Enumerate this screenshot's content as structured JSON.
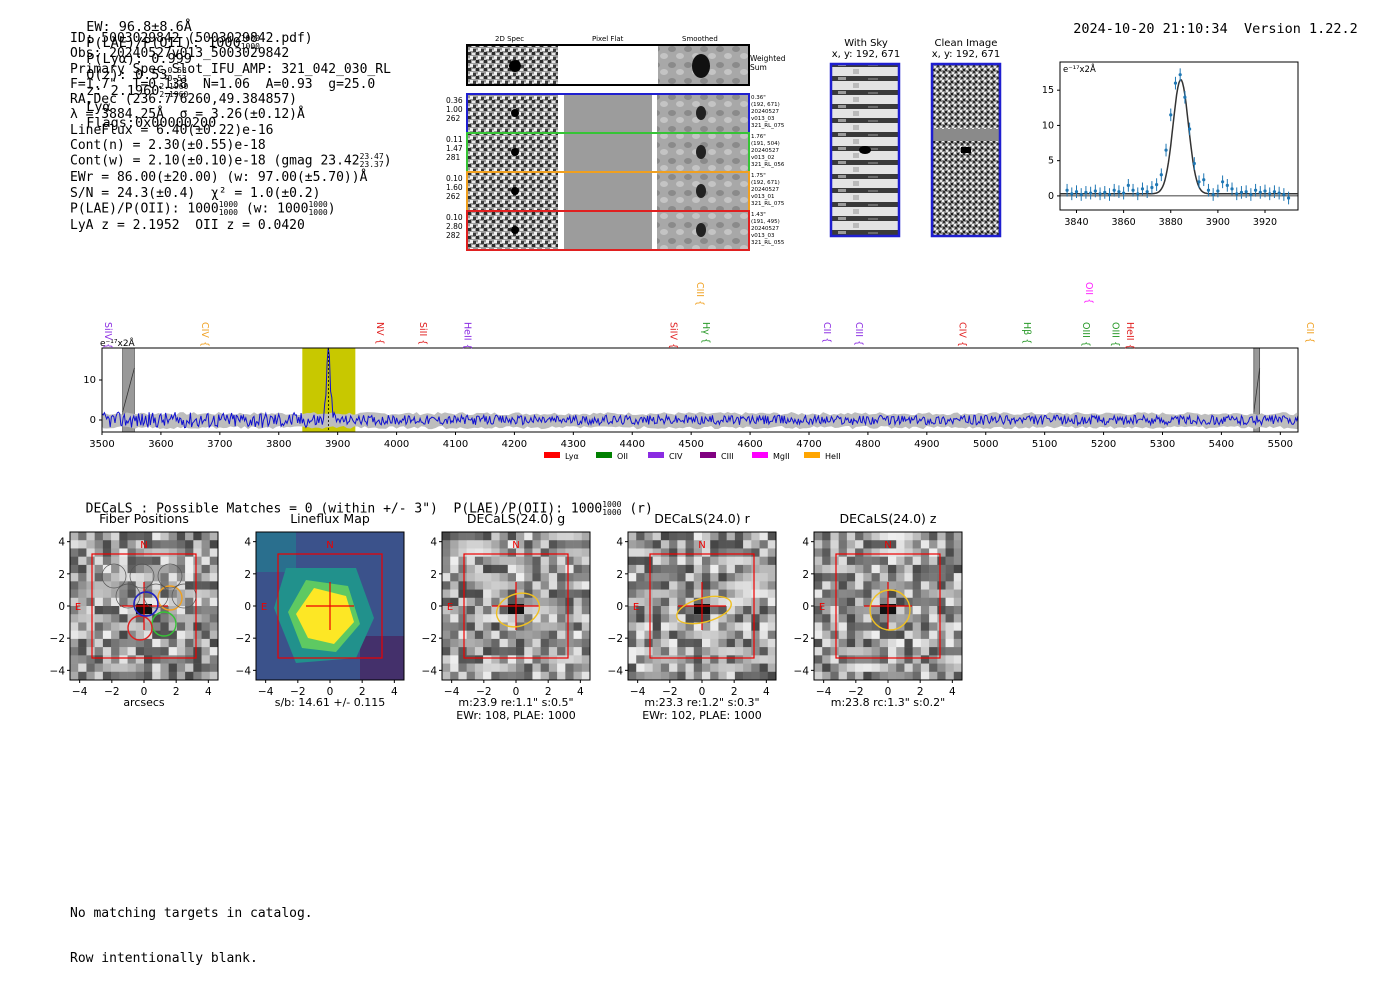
{
  "header": {
    "ew": "EW: 96.8±8.6Å",
    "plae": "P(LAE)/P(OII): 1000",
    "plae_hi": "1000",
    "plae_lo": "1000",
    "plya": "P(Lyα): 0.999",
    "qz": "Q(z): 0.53",
    "qz_hi": "0.53",
    "qz_lo": "0.53",
    "z": "z: 2.1960",
    "z_hi": "2.1960",
    "z_lo": "2.1960",
    "line": "Lyα",
    "flags": "Flags:0x00000200",
    "datetime": "2024-10-20 21:10:34",
    "version": "Version 1.22.2"
  },
  "info": {
    "id": "ID: 5003029842 (5003029842.pdf)",
    "obs": "Obs: 20240527v013_5003029842",
    "primary": "Primary Spec_Slot_IFU_AMP: 321_042_030_RL",
    "fit": "F=1.7\"  T=0.138  N=1.06  A=0.93  g=25.0",
    "radec": "RA,Dec (236.776260,49.384857)",
    "lambda": "λ = 3884.25Å  σ = 3.26(±0.12)Å",
    "lineflux": "LineFlux = 6.40(±0.22)e-16",
    "contn": "Cont(n) = 2.30(±0.55)e-18",
    "contw": "Cont(w) = 2.10(±0.10)e-18 (gmag 23.42",
    "contw_hi": "23.47",
    "contw_lo": "23.37",
    "contw_end": ")",
    "ewr": "EWr = 86.00(±20.00) (w: 97.00(±5.70))Å",
    "sn": "S/N = 24.3(±0.4)  χ² = 1.0(±0.2)",
    "plae2": "P(LAE)/P(OII): 1000",
    "plae2_hi": "1000",
    "plae2_lo": "1000",
    "plae2_w": "(w: 1000",
    "plae2_w_hi": "1000",
    "plae2_w_lo": "1000",
    "plae2_end": ")",
    "lyaz": "LyA z = 2.1952  OII z = 0.0420"
  },
  "cutouts": {
    "col_headers": [
      "2D Spec",
      "Pixel Flat",
      "Smoothed"
    ],
    "weighted": "Weighted Sum",
    "rows": [
      {
        "left": [
          "0.36",
          "1.00",
          "262"
        ],
        "right": [
          "0.36\"",
          "(192, 671)",
          "20240527",
          "v013_03",
          "321_RL_075"
        ],
        "color": "#1f1fd0"
      },
      {
        "left": [
          "0.11",
          "1.47",
          "281"
        ],
        "right": [
          "1.76\"",
          "(191, 504)",
          "20240527",
          "v013_02",
          "321_RL_056"
        ],
        "color": "#36c436"
      },
      {
        "left": [
          "0.10",
          "1.60",
          "262"
        ],
        "right": [
          "1.75\"",
          "(192, 671)",
          "20240527",
          "v013_01",
          "321_RL_075"
        ],
        "color": "#f0a020"
      },
      {
        "left": [
          "0.10",
          "2.80",
          "282"
        ],
        "right": [
          "1.43\"",
          "(191, 495)",
          "20240527",
          "v013_03",
          "321_RL_055"
        ],
        "color": "#e02020"
      }
    ]
  },
  "sky": {
    "with_sky_title": "With Sky",
    "with_sky_xy": "x, y: 192, 671",
    "clean_title": "Clean Image",
    "clean_xy": "x, y: 192, 671"
  },
  "line_fit": {
    "unit": "e⁻¹⁷x2Å",
    "xticks": [
      "3840",
      "3860",
      "3880",
      "3900",
      "3920"
    ],
    "yticks": [
      "15",
      "10",
      "5",
      "0"
    ]
  },
  "spectrum": {
    "unit": "e⁻¹⁷x2Å",
    "yticks": [
      "10",
      "0"
    ],
    "xticks": [
      "3500",
      "3600",
      "3700",
      "3800",
      "3900",
      "4000",
      "4100",
      "4200",
      "4300",
      "4400",
      "4500",
      "4600",
      "4700",
      "4800",
      "4900",
      "5000",
      "5100",
      "5200",
      "5300",
      "5400",
      "5500"
    ],
    "line_labels": [
      {
        "label": "SiIV",
        "wave": 3500,
        "color": "#8a2be2",
        "row": 1
      },
      {
        "label": "CIV",
        "wave": 3665,
        "color": "#f0a020",
        "row": 1
      },
      {
        "label": "NV",
        "wave": 3962,
        "color": "#e02020",
        "row": 1
      },
      {
        "label": "SiII",
        "wave": 4035,
        "color": "#e02020",
        "row": 1
      },
      {
        "label": "HeII",
        "wave": 4110,
        "color": "#8a2be2",
        "row": 1
      },
      {
        "label": "SiIV",
        "wave": 4460,
        "color": "#e02020",
        "row": 1
      },
      {
        "label": "CIII",
        "wave": 4505,
        "color": "#f0a020",
        "row": 0
      },
      {
        "label": "Hγ",
        "wave": 4515,
        "color": "#2a9a2a",
        "row": 1
      },
      {
        "label": "CII",
        "wave": 4720,
        "color": "#8a2be2",
        "row": 1
      },
      {
        "label": "CIII",
        "wave": 4775,
        "color": "#8a2be2",
        "row": 1
      },
      {
        "label": "CIV",
        "wave": 4950,
        "color": "#e02020",
        "row": 1
      },
      {
        "label": "Hβ",
        "wave": 5060,
        "color": "#2a9a2a",
        "row": 1
      },
      {
        "label": "OII",
        "wave": 5165,
        "color": "#ff22ff",
        "row": 0
      },
      {
        "label": "OIII",
        "wave": 5160,
        "color": "#2a9a2a",
        "row": 1
      },
      {
        "label": "OIII",
        "wave": 5210,
        "color": "#2a9a2a",
        "row": 1
      },
      {
        "label": "HeII",
        "wave": 5235,
        "color": "#e02020",
        "row": 1
      },
      {
        "label": "CII",
        "wave": 5540,
        "color": "#f0a020",
        "row": 1
      }
    ],
    "legend": [
      {
        "label": "Lyα",
        "color": "#ff0000"
      },
      {
        "label": "OII",
        "color": "#008000"
      },
      {
        "label": "CIV",
        "color": "#8a2be2"
      },
      {
        "label": "CIII",
        "color": "#800080"
      },
      {
        "label": "MgII",
        "color": "#ff00ff"
      },
      {
        "label": "HeII",
        "color": "#ffa500"
      }
    ]
  },
  "decals": {
    "summary": "DECaLS : Possible Matches = 0 (within +/- 3\")  P(LAE)/P(OII): 1000",
    "summary_hi": "1000",
    "summary_lo": "1000",
    "summary_end": "(r)",
    "ticks": [
      "4",
      "2",
      "0",
      "−2",
      "−4"
    ],
    "xticks": [
      "−4",
      "−2",
      "0",
      "2",
      "4"
    ],
    "north": "N",
    "east": "E",
    "panels": [
      {
        "title": "Fiber Positions",
        "caption": [
          "arcsecs"
        ]
      },
      {
        "title": "Lineflux Map",
        "caption": [
          "s/b: 14.61 +/- 0.115"
        ]
      },
      {
        "title": "DECaLS(24.0) g",
        "caption": [
          "m:23.9  re:1.1\"  s:0.5\"",
          "EWr: 108, PLAE: 1000"
        ]
      },
      {
        "title": "DECaLS(24.0) r",
        "caption": [
          "m:23.3  re:1.2\"  s:0.3\"",
          "EWr: 102, PLAE: 1000"
        ]
      },
      {
        "title": "DECaLS(24.0) z",
        "caption": [
          "m:23.8 rc:1.3\"  s:0.2\""
        ]
      }
    ]
  },
  "footer": {
    "line1": "No matching targets in catalog.",
    "line2": "Row intentionally blank."
  },
  "chart_data": [
    {
      "type": "scatter",
      "title": "",
      "xlabel": "",
      "ylabel": "e⁻¹⁷x2Å",
      "xlim": [
        3833,
        3934
      ],
      "ylim": [
        -2,
        19
      ],
      "x": [
        3836,
        3838,
        3840,
        3842,
        3844,
        3846,
        3848,
        3850,
        3852,
        3854,
        3856,
        3858,
        3860,
        3862,
        3864,
        3866,
        3868,
        3870,
        3872,
        3874,
        3876,
        3878,
        3880,
        3882,
        3884,
        3886,
        3888,
        3890,
        3892,
        3894,
        3896,
        3898,
        3900,
        3902,
        3904,
        3906,
        3908,
        3910,
        3912,
        3914,
        3916,
        3918,
        3920,
        3922,
        3924,
        3926,
        3928,
        3930
      ],
      "y": [
        0.8,
        0.3,
        0.6,
        0.2,
        0.5,
        0.4,
        0.7,
        0.3,
        0.5,
        0.2,
        0.8,
        0.6,
        0.4,
        1.5,
        0.8,
        0.3,
        1.0,
        0.6,
        1.2,
        1.6,
        3.0,
        6.5,
        11.5,
        16.0,
        17.2,
        14.0,
        9.5,
        4.6,
        2.0,
        2.3,
        0.8,
        0.2,
        0.7,
        2.0,
        1.5,
        1.0,
        0.3,
        0.5,
        0.6,
        0.2,
        0.8,
        0.5,
        0.7,
        0.3,
        0.6,
        0.4,
        0.2,
        -0.3
      ],
      "model": {
        "amplitude": 16.2,
        "center": 3884.25,
        "sigma": 3.26,
        "continuum": 0.3
      }
    },
    {
      "type": "line",
      "title": "",
      "ylabel": "e⁻¹⁷x2Å",
      "xlim": [
        3500,
        5530
      ],
      "ylim": [
        -3,
        18
      ],
      "highlight_range": [
        3840,
        3930
      ],
      "emission_peak": {
        "wave": 3884.25,
        "value": 17
      },
      "masked_ranges": [
        [
          3535,
          3555
        ],
        [
          5455,
          5465
        ]
      ]
    }
  ]
}
